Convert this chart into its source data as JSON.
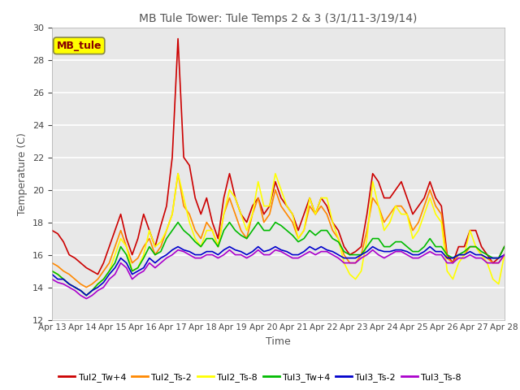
{
  "title": "MB Tule Tower: Tule Temps 2 & 3 (3/1/11-3/19/14)",
  "xlabel": "Time",
  "ylabel": "Temperature (C)",
  "ylim": [
    12,
    30
  ],
  "yticks": [
    12,
    14,
    16,
    18,
    20,
    22,
    24,
    26,
    28,
    30
  ],
  "background_color": "#ffffff",
  "plot_bg_color": "#e8e8e8",
  "box_label": "MB_tule",
  "box_color": "#ffff00",
  "box_text_color": "#880000",
  "series_names": [
    "Tul2_Tw+4",
    "Tul2_Ts-2",
    "Tul2_Ts-8",
    "Tul3_Tw+4",
    "Tul3_Ts-2",
    "Tul3_Ts-8"
  ],
  "series_colors": [
    "#cc0000",
    "#ff8800",
    "#ffff00",
    "#00bb00",
    "#0000cc",
    "#aa00cc"
  ],
  "x_labels": [
    "Apr 13",
    "Apr 14",
    "Apr 15",
    "Apr 16",
    "Apr 17",
    "Apr 18",
    "Apr 19",
    "Apr 20",
    "Apr 21",
    "Apr 22",
    "Apr 23",
    "Apr 24",
    "Apr 25",
    "Apr 26",
    "Apr 27",
    "Apr 28"
  ],
  "Tul2_Tw4": [
    17.5,
    17.3,
    16.8,
    16.0,
    15.8,
    15.5,
    15.2,
    15.0,
    14.8,
    15.5,
    16.5,
    17.5,
    18.5,
    17.0,
    16.0,
    17.0,
    18.5,
    17.5,
    16.5,
    17.8,
    19.0,
    22.0,
    29.3,
    22.0,
    21.5,
    19.5,
    18.5,
    19.5,
    18.0,
    17.0,
    19.5,
    21.0,
    19.5,
    18.5,
    18.0,
    19.0,
    19.5,
    18.5,
    19.0,
    20.5,
    19.5,
    19.0,
    18.5,
    17.5,
    18.5,
    19.5,
    18.5,
    19.5,
    19.0,
    18.0,
    17.5,
    16.5,
    16.0,
    16.2,
    16.5,
    18.5,
    21.0,
    20.5,
    19.5,
    19.5,
    20.0,
    20.5,
    19.5,
    18.5,
    19.0,
    19.5,
    20.5,
    19.5,
    19.0,
    16.0,
    15.5,
    16.5,
    16.5,
    17.5,
    17.5,
    16.5,
    16.0,
    15.5,
    15.8,
    16.5
  ],
  "Tul2_Ts2": [
    15.5,
    15.3,
    15.0,
    14.8,
    14.5,
    14.2,
    14.0,
    14.2,
    14.5,
    15.0,
    15.5,
    16.5,
    17.5,
    16.5,
    15.5,
    15.8,
    16.5,
    17.0,
    16.0,
    16.5,
    17.5,
    18.5,
    21.0,
    19.0,
    18.5,
    17.5,
    17.0,
    18.0,
    17.5,
    16.5,
    18.5,
    19.5,
    18.5,
    17.5,
    17.0,
    18.5,
    19.5,
    18.0,
    18.5,
    20.0,
    19.0,
    18.5,
    18.0,
    17.0,
    17.5,
    19.0,
    18.5,
    19.0,
    18.5,
    17.5,
    17.0,
    16.0,
    15.5,
    15.5,
    16.0,
    17.5,
    19.5,
    19.0,
    18.0,
    18.5,
    19.0,
    19.0,
    18.5,
    17.5,
    18.0,
    19.0,
    20.0,
    19.0,
    18.5,
    15.8,
    15.5,
    16.0,
    16.0,
    16.5,
    16.5,
    16.0,
    15.8,
    15.5,
    15.5,
    16.0
  ],
  "Tul2_Ts8": [
    15.0,
    14.8,
    14.5,
    14.2,
    14.0,
    13.8,
    13.5,
    13.8,
    14.2,
    14.5,
    15.0,
    16.0,
    17.0,
    16.5,
    15.0,
    15.2,
    16.0,
    17.5,
    16.5,
    16.8,
    17.5,
    18.5,
    21.0,
    19.5,
    18.0,
    17.0,
    16.5,
    17.5,
    17.5,
    16.5,
    18.5,
    20.0,
    19.5,
    18.5,
    17.5,
    18.5,
    20.5,
    19.0,
    19.0,
    21.0,
    20.0,
    19.0,
    18.5,
    17.0,
    17.5,
    19.5,
    18.5,
    19.5,
    19.5,
    18.0,
    17.0,
    15.5,
    14.8,
    14.5,
    15.0,
    17.0,
    20.5,
    19.0,
    17.5,
    18.0,
    19.0,
    18.5,
    18.5,
    17.0,
    17.5,
    18.5,
    19.5,
    18.5,
    18.0,
    15.0,
    14.5,
    15.5,
    16.0,
    17.5,
    16.5,
    16.0,
    15.5,
    14.5,
    14.2,
    16.0
  ],
  "Tul3_Tw4": [
    15.0,
    14.8,
    14.5,
    14.2,
    14.0,
    13.8,
    13.5,
    13.8,
    14.2,
    14.5,
    15.0,
    15.5,
    16.5,
    16.0,
    15.0,
    15.2,
    15.8,
    16.5,
    16.0,
    16.2,
    17.0,
    17.5,
    18.0,
    17.5,
    17.2,
    16.8,
    16.5,
    17.0,
    17.0,
    16.5,
    17.5,
    18.0,
    17.5,
    17.2,
    17.0,
    17.5,
    18.0,
    17.5,
    17.5,
    18.0,
    17.8,
    17.5,
    17.2,
    16.8,
    17.0,
    17.5,
    17.2,
    17.5,
    17.5,
    17.0,
    16.8,
    16.2,
    16.0,
    16.0,
    16.0,
    16.5,
    17.0,
    17.0,
    16.5,
    16.5,
    16.8,
    16.8,
    16.5,
    16.2,
    16.2,
    16.5,
    17.0,
    16.5,
    16.5,
    16.0,
    15.8,
    16.0,
    16.2,
    16.5,
    16.5,
    16.2,
    16.0,
    15.8,
    15.8,
    16.5
  ],
  "Tul3_Ts2": [
    14.8,
    14.5,
    14.5,
    14.2,
    14.0,
    13.8,
    13.5,
    13.8,
    14.0,
    14.3,
    14.8,
    15.2,
    15.8,
    15.5,
    14.8,
    15.0,
    15.2,
    15.8,
    15.5,
    15.8,
    16.0,
    16.3,
    16.5,
    16.3,
    16.2,
    16.0,
    16.0,
    16.2,
    16.2,
    16.0,
    16.3,
    16.5,
    16.3,
    16.2,
    16.0,
    16.2,
    16.5,
    16.2,
    16.3,
    16.5,
    16.3,
    16.2,
    16.0,
    16.0,
    16.2,
    16.5,
    16.3,
    16.5,
    16.3,
    16.2,
    16.0,
    15.8,
    15.8,
    15.8,
    16.0,
    16.2,
    16.5,
    16.3,
    16.2,
    16.2,
    16.3,
    16.3,
    16.2,
    16.0,
    16.0,
    16.2,
    16.5,
    16.2,
    16.2,
    15.8,
    15.8,
    16.0,
    16.0,
    16.2,
    16.0,
    16.0,
    15.8,
    15.8,
    15.8,
    16.0
  ],
  "Tul3_Ts8": [
    14.5,
    14.3,
    14.2,
    14.0,
    13.8,
    13.5,
    13.3,
    13.5,
    13.8,
    14.0,
    14.5,
    14.8,
    15.5,
    15.2,
    14.5,
    14.8,
    15.0,
    15.5,
    15.2,
    15.5,
    15.8,
    16.0,
    16.3,
    16.2,
    16.0,
    15.8,
    15.8,
    16.0,
    16.0,
    15.8,
    16.0,
    16.3,
    16.0,
    16.0,
    15.8,
    16.0,
    16.3,
    16.0,
    16.0,
    16.3,
    16.2,
    16.0,
    15.8,
    15.8,
    16.0,
    16.2,
    16.0,
    16.2,
    16.2,
    16.0,
    15.8,
    15.5,
    15.5,
    15.5,
    15.8,
    16.0,
    16.3,
    16.0,
    15.8,
    16.0,
    16.2,
    16.2,
    16.0,
    15.8,
    15.8,
    16.0,
    16.2,
    16.0,
    16.0,
    15.5,
    15.5,
    15.8,
    15.8,
    16.0,
    15.8,
    15.8,
    15.5,
    15.5,
    15.5,
    16.0
  ]
}
